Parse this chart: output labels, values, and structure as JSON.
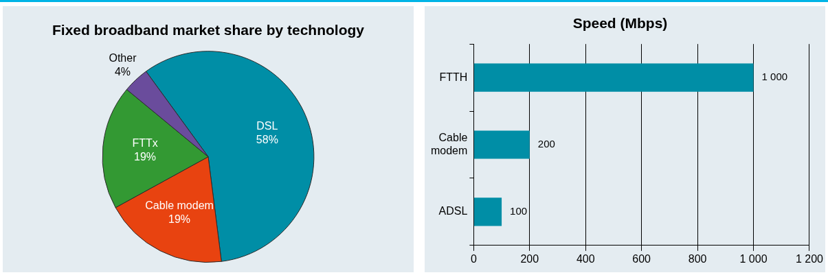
{
  "chart_data": [
    {
      "type": "pie",
      "title": "Fixed broadband market share by technology",
      "categories": [
        "DSL",
        "Cable modem",
        "FTTx",
        "Other"
      ],
      "values": [
        58,
        19,
        19,
        4
      ],
      "colors": [
        "#008ea6",
        "#e84310",
        "#339933",
        "#6a4c9c"
      ],
      "value_labels": [
        "58%",
        "19%",
        "19%",
        "4%"
      ]
    },
    {
      "type": "bar",
      "title": "Speed (Mbps)",
      "orientation": "horizontal",
      "categories": [
        "FTTH",
        "Cable modem",
        "ADSL"
      ],
      "values": [
        1000,
        200,
        100
      ],
      "color": "#008ea6",
      "value_labels": [
        "1 000",
        "200",
        "100"
      ],
      "xlim": [
        0,
        1200
      ],
      "xticks": [
        0,
        200,
        400,
        600,
        800,
        {
          "value": 1000,
          "label": "1 000"
        },
        {
          "value": 1200,
          "label": "1 200"
        }
      ],
      "grid": "x"
    }
  ]
}
